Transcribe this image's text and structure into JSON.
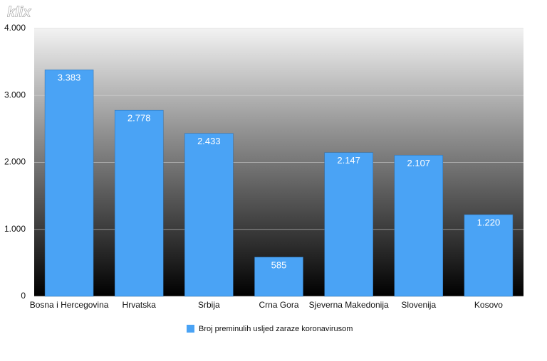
{
  "chart_data": {
    "type": "bar",
    "watermark": "klix",
    "categories": [
      "Bosna i Hercegovina",
      "Hrvatska",
      "Srbija",
      "Crna Gora",
      "Sjeverna Makedonija",
      "Slovenija",
      "Kosovo"
    ],
    "series": [
      {
        "name": "Broj preminulih usljed zaraze koronavirusom",
        "color": "#4aa3f5",
        "values": [
          3383,
          2778,
          2433,
          585,
          2147,
          2107,
          1220
        ],
        "value_labels": [
          "3.383",
          "2.778",
          "2.433",
          "585",
          "2.147",
          "2.107",
          "1.220"
        ]
      }
    ],
    "ylim": [
      0,
      4000
    ],
    "yticks": [
      0,
      {
        "value": 1000,
        "label": "1.000"
      },
      {
        "value": 2000,
        "label": "2.000"
      },
      {
        "value": 3000,
        "label": "3.000"
      },
      {
        "value": 4000,
        "label": "4.000"
      }
    ],
    "grid": true,
    "legend": "bottom"
  }
}
